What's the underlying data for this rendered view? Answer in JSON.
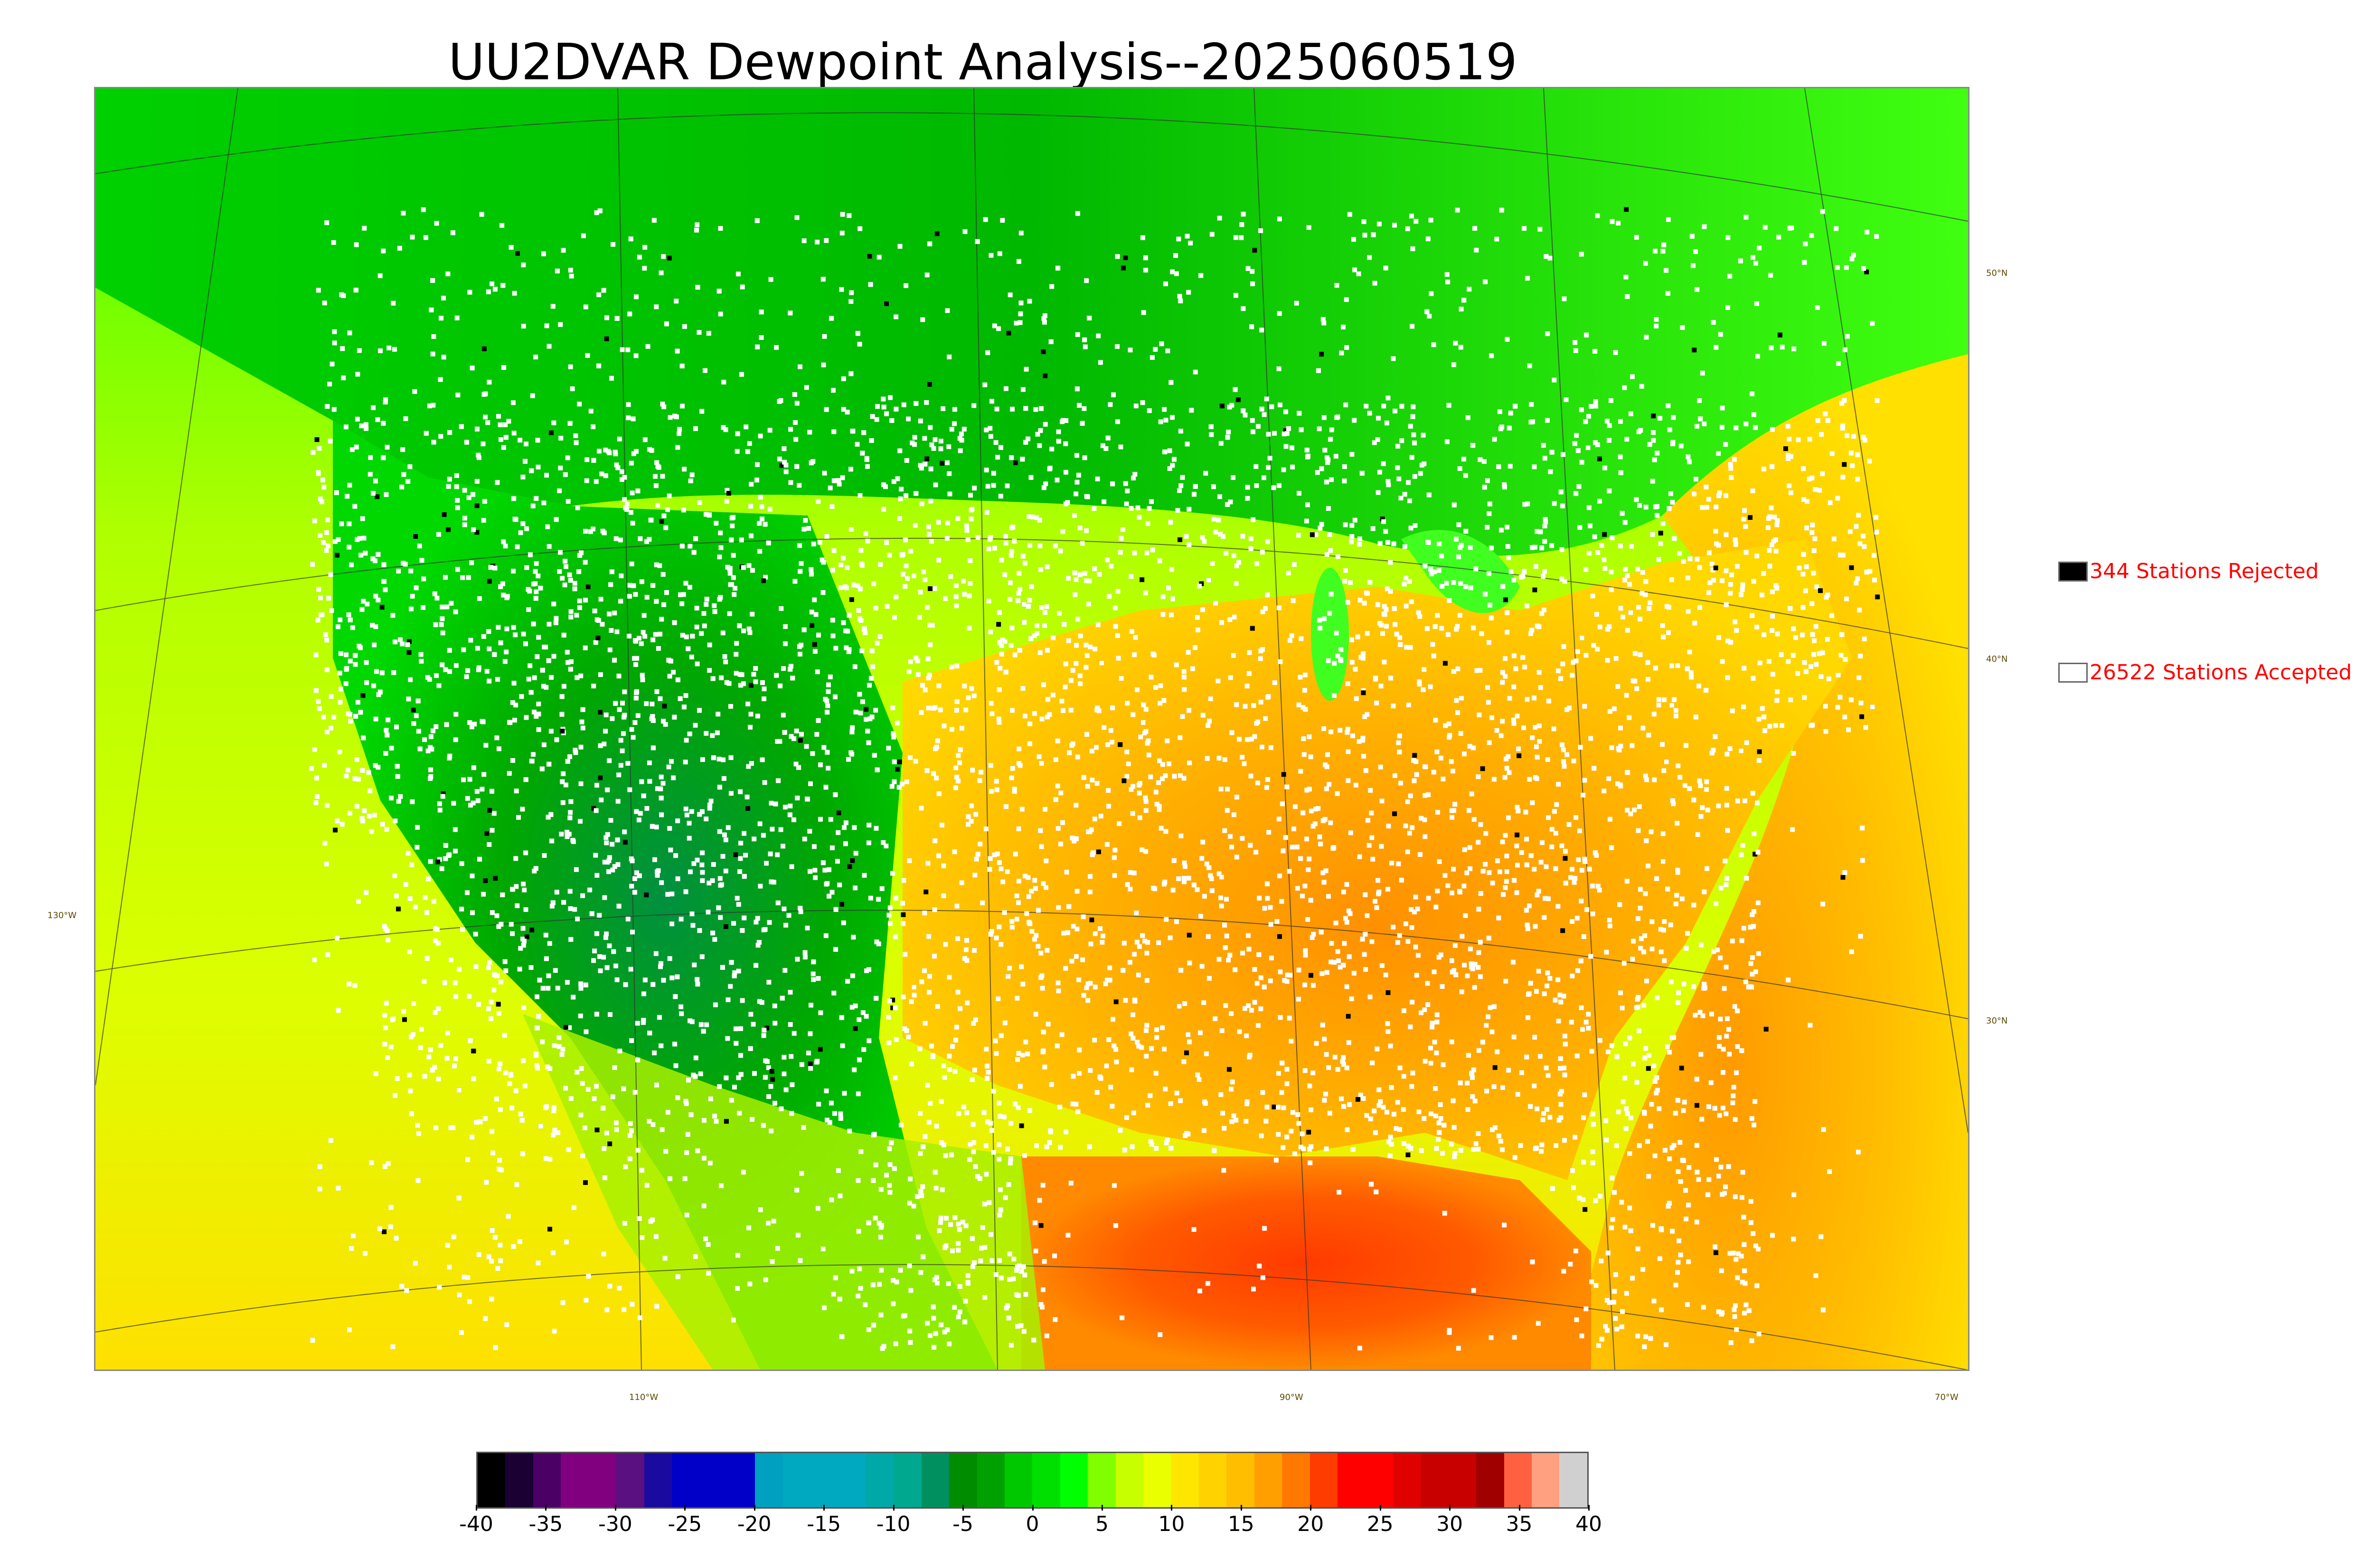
{
  "title": "UU2DVAR Dewpoint Analysis--2025060519",
  "latitude_labels": [
    "50°N",
    "40°N",
    "30°N"
  ],
  "longitude_labels": [
    "130°W",
    "110°W",
    "90°W",
    "70°W"
  ],
  "legend": {
    "rejected_label": "344 Stations Rejected",
    "accepted_label": "26522 Stations Accepted",
    "rejected_color": "#000000",
    "accepted_color": "#ffffff",
    "text_color": "#ff0000"
  },
  "colorbar": {
    "ticks": [
      "-40",
      "-35",
      "-30",
      "-25",
      "-20",
      "-15",
      "-10",
      "-5",
      "0",
      "5",
      "10",
      "15",
      "20",
      "25",
      "30",
      "35",
      "40"
    ],
    "colors": [
      "#000000",
      "#1a0033",
      "#4b0066",
      "#800080",
      "#800080",
      "#5a1080",
      "#1a0aa0",
      "#0000c8",
      "#0000c8",
      "#0000c8",
      "#00a0c0",
      "#00a8c0",
      "#00a8c0",
      "#00a8c0",
      "#00a8a8",
      "#00a890",
      "#009060",
      "#008c00",
      "#00a000",
      "#00c800",
      "#00e000",
      "#00ff00",
      "#80ff00",
      "#c8ff00",
      "#eaff00",
      "#ffe600",
      "#ffd200",
      "#ffbe00",
      "#ffa000",
      "#ff7800",
      "#ff3c00",
      "#ff0000",
      "#ff0000",
      "#e00000",
      "#c80000",
      "#c80000",
      "#a00000",
      "#ff6040",
      "#ffa080",
      "#d0d0d0"
    ]
  }
}
